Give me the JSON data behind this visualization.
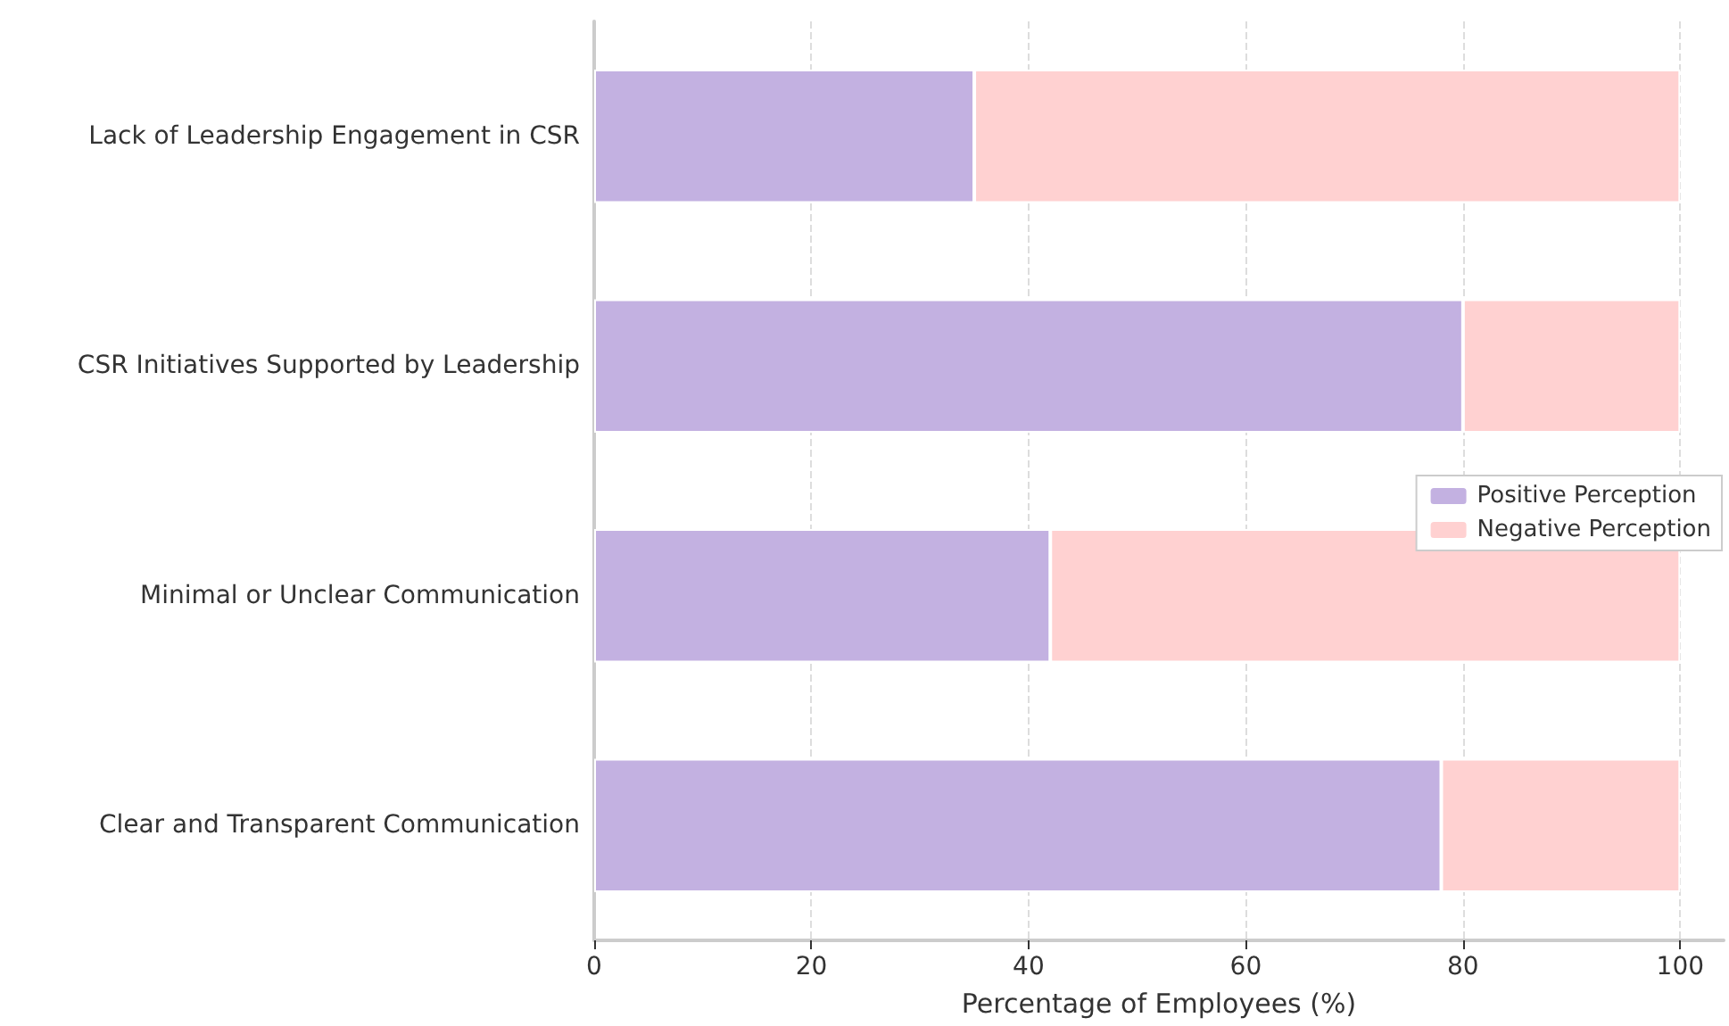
{
  "chart_data": {
    "type": "bar",
    "orientation": "horizontal",
    "stacked": true,
    "categories": [
      "Lack of Leadership Engagement in CSR",
      "CSR Initiatives Supported by Leadership",
      "Minimal or Unclear Communication",
      "Clear and Transparent Communication"
    ],
    "series": [
      {
        "name": "Positive Perception",
        "color": "#c3b1e1",
        "values": [
          35,
          80,
          42,
          78
        ]
      },
      {
        "name": "Negative Perception",
        "color": "#ffd1d1",
        "values": [
          65,
          20,
          58,
          22
        ]
      }
    ],
    "xlabel": "Percentage of Employees (%)",
    "xlim": [
      0,
      104
    ],
    "xticks": [
      0,
      20,
      40,
      60,
      80,
      100
    ],
    "grid": "x",
    "legend": "right"
  }
}
